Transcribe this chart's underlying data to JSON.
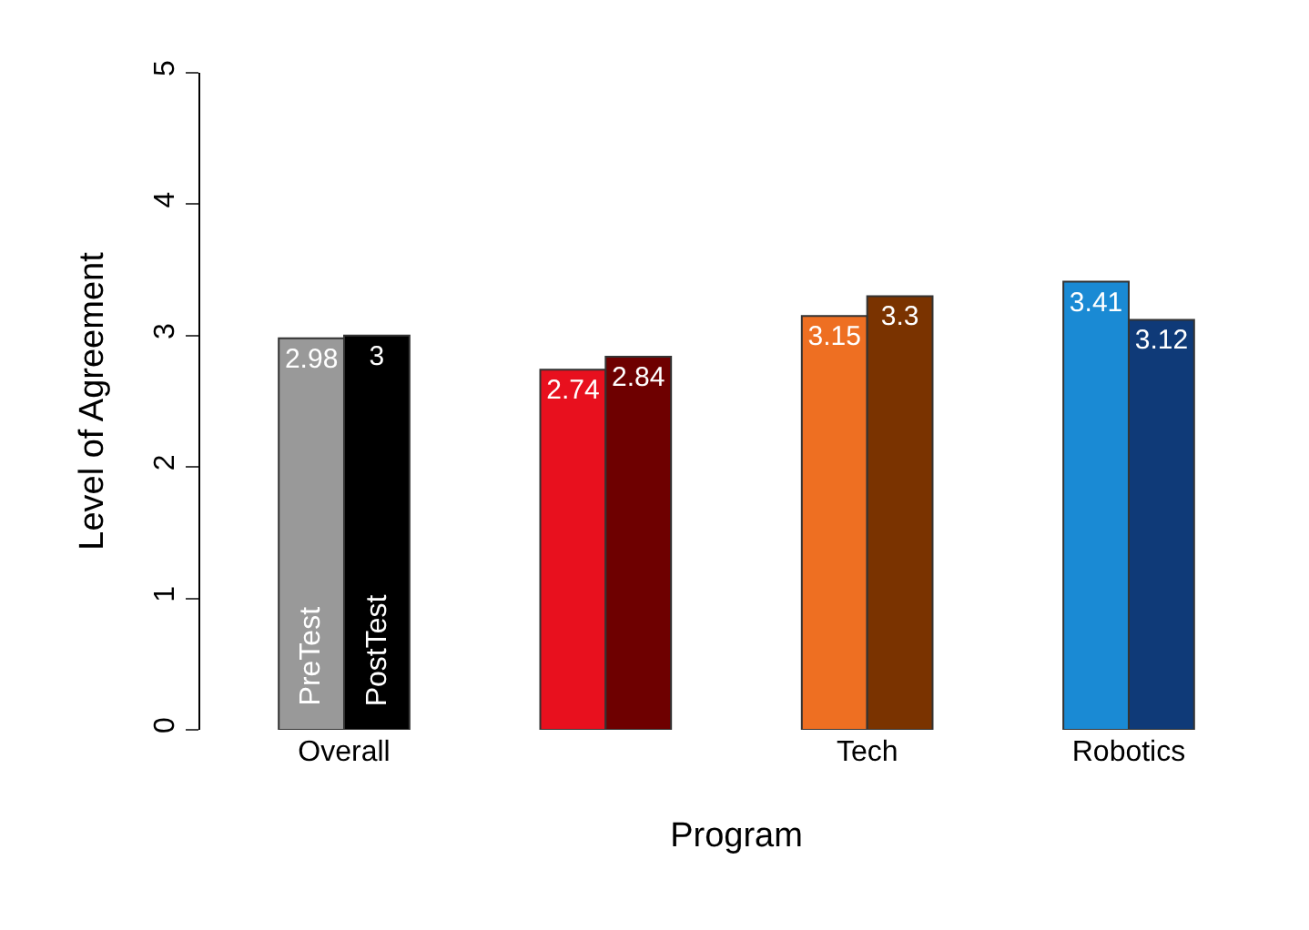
{
  "chart_data": {
    "type": "bar",
    "xlabel": "Program",
    "ylabel": "Level of Agreement",
    "categories": [
      "Overall",
      null,
      "Tech",
      "Robotics"
    ],
    "series": [
      {
        "name": "PreTest",
        "colors": [
          "#999999",
          "#e8101e",
          "#ee6f22",
          "#1a8ad4"
        ],
        "values": [
          2.98,
          2.74,
          3.15,
          3.41
        ]
      },
      {
        "name": "PostTest",
        "colors": [
          "#000000",
          "#6e0000",
          "#7a3300",
          "#0f3a78"
        ],
        "values": [
          3,
          2.84,
          3.3,
          3.12
        ]
      }
    ],
    "ylim": [
      0,
      5
    ],
    "yticks": [
      0,
      1,
      2,
      3,
      4,
      5
    ],
    "grid": false,
    "legend": false,
    "data_labels": true
  }
}
